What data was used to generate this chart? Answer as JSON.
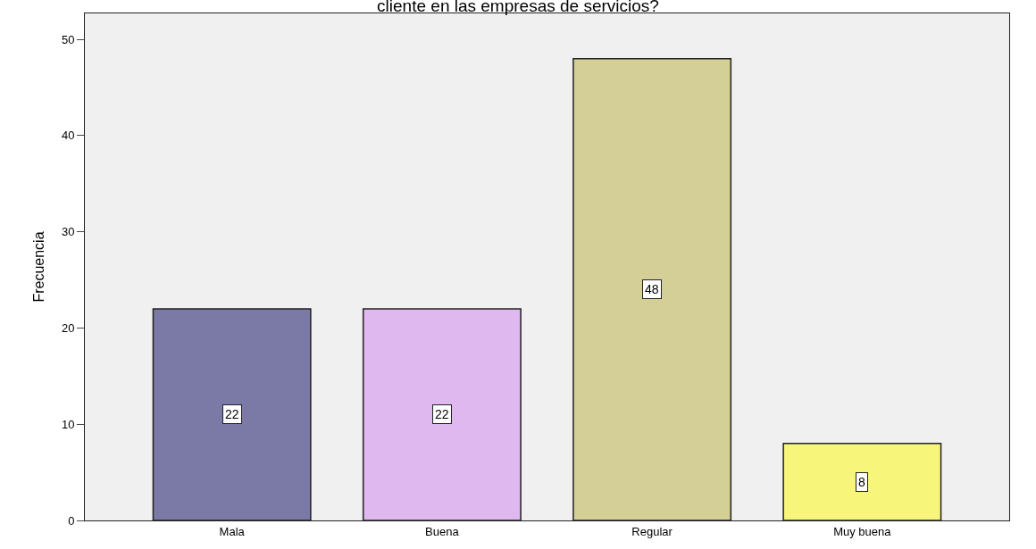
{
  "chart_data": {
    "type": "bar",
    "title": "cliente en las empresas de servicios?",
    "ylabel": "Frecuencia",
    "categories": [
      "Mala",
      "Buena",
      "Regular",
      "Muy buena"
    ],
    "values": [
      22,
      22,
      48,
      8
    ],
    "colors": [
      "#7b7aa6",
      "#dfb8f0",
      "#d3cf96",
      "#f7f57a"
    ],
    "ylim": [
      0,
      52.7
    ],
    "yticks": [
      0,
      10,
      20,
      30,
      40,
      50
    ],
    "grid": false,
    "data_labels": true
  }
}
